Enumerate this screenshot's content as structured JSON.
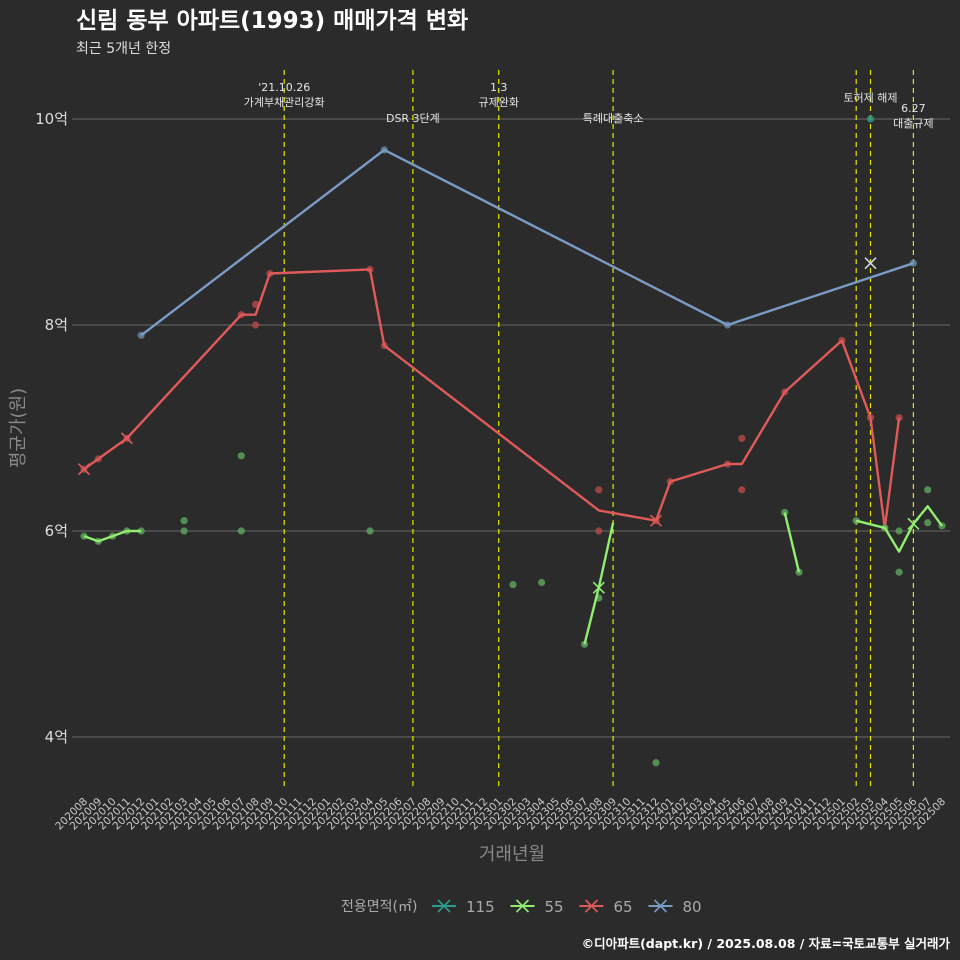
{
  "header": {
    "title": "신림 동부 아파트(1993) 매매가격 변화",
    "subtitle": "최근 5개년 한정"
  },
  "caption": "©디아파트(dapt.kr) / 2025.08.08 / 자료=국토교통부 실거래가",
  "colors": {
    "background": "#2b2b2b",
    "grid": "#6a6a6a",
    "event_line": "#e6e600",
    "s115": "#2a9d8f",
    "s55": "#90ee70",
    "s65": "#e05a5a",
    "s80": "#7a9cc4",
    "point55": "#5fa85f",
    "point65": "#b84a4a",
    "point80": "#6a8aaa"
  },
  "chart_data": {
    "type": "line",
    "xlabel": "거래년월",
    "ylabel": "평균가(원)",
    "ylim": [
      3.5,
      10.5
    ],
    "yticks": [
      {
        "value": 4,
        "label": "4억"
      },
      {
        "value": 6,
        "label": "6억"
      },
      {
        "value": 8,
        "label": "8억"
      },
      {
        "value": 10,
        "label": "10억"
      }
    ],
    "categories": [
      "202008",
      "202009",
      "202010",
      "202011",
      "202012",
      "202101",
      "202102",
      "202103",
      "202104",
      "202105",
      "202106",
      "202107",
      "202108",
      "202109",
      "202110",
      "202111",
      "202112",
      "202201",
      "202202",
      "202203",
      "202204",
      "202205",
      "202206",
      "202207",
      "202208",
      "202209",
      "202210",
      "202211",
      "202212",
      "202301",
      "202302",
      "202303",
      "202304",
      "202305",
      "202306",
      "202307",
      "202308",
      "202309",
      "202310",
      "202311",
      "202312",
      "202401",
      "202402",
      "202403",
      "202404",
      "202405",
      "202406",
      "202407",
      "202408",
      "202409",
      "202410",
      "202411",
      "202412",
      "202501",
      "202502",
      "202503",
      "202504",
      "202505",
      "202506",
      "202507",
      "202508"
    ],
    "legend": {
      "title": "전용면적(㎡)",
      "position": "bottom",
      "items": [
        {
          "name": "115",
          "color": "#2a9d8f"
        },
        {
          "name": "55",
          "color": "#90ee70"
        },
        {
          "name": "65",
          "color": "#e05a5a"
        },
        {
          "name": "80",
          "color": "#7a9cc4"
        }
      ]
    },
    "events": [
      {
        "x": "202110",
        "label": "'21.10.26\n가계부채관리강화",
        "label_y": 10.27
      },
      {
        "x": "202207",
        "label": "DSR 3단계",
        "label_y": 9.97
      },
      {
        "x": "202301",
        "label": "1.3\n규제완화",
        "label_y": 10.27
      },
      {
        "x": "202309",
        "label": "특례대출축소",
        "label_y": 9.97
      },
      {
        "x": "202502",
        "label": "",
        "label_y": 10.0
      },
      {
        "x": "202503",
        "label": "토허제 해제",
        "label_y": 10.17
      },
      {
        "x": "202506",
        "label": "6.27\n대출규제",
        "label_y": 10.07
      }
    ],
    "series": [
      {
        "name": "115",
        "lines": [],
        "points": [
          {
            "x": "202503",
            "y": 10.0
          }
        ],
        "x_marks": []
      },
      {
        "name": "55",
        "lines": [
          [
            {
              "x": "202008",
              "y": 5.95
            },
            {
              "x": "202009",
              "y": 5.9
            },
            {
              "x": "202010",
              "y": 5.95
            },
            {
              "x": "202011",
              "y": 6.0
            },
            {
              "x": "202012",
              "y": 6.0
            }
          ],
          [
            {
              "x": "202307",
              "y": 4.9
            },
            {
              "x": "202308",
              "y": 5.45
            },
            {
              "x": "202309",
              "y": 6.08
            }
          ],
          [
            {
              "x": "202409",
              "y": 6.18
            },
            {
              "x": "202410",
              "y": 5.6
            }
          ],
          [
            {
              "x": "202502",
              "y": 6.1
            },
            {
              "x": "202504",
              "y": 6.03
            },
            {
              "x": "202505",
              "y": 5.8
            },
            {
              "x": "202506",
              "y": 6.07
            },
            {
              "x": "202507",
              "y": 6.24
            },
            {
              "x": "202508",
              "y": 6.05
            }
          ]
        ],
        "points": [
          {
            "x": "202008",
            "y": 5.95
          },
          {
            "x": "202009",
            "y": 5.9
          },
          {
            "x": "202010",
            "y": 5.95
          },
          {
            "x": "202011",
            "y": 6.0
          },
          {
            "x": "202012",
            "y": 6.0
          },
          {
            "x": "202103",
            "y": 6.1
          },
          {
            "x": "202103",
            "y": 6.0
          },
          {
            "x": "202107",
            "y": 6.73
          },
          {
            "x": "202107",
            "y": 6.0
          },
          {
            "x": "202204",
            "y": 6.0
          },
          {
            "x": "202302",
            "y": 5.48
          },
          {
            "x": "202304",
            "y": 5.5
          },
          {
            "x": "202307",
            "y": 4.9
          },
          {
            "x": "202308",
            "y": 5.35
          },
          {
            "x": "202312",
            "y": 3.75
          },
          {
            "x": "202409",
            "y": 6.18
          },
          {
            "x": "202410",
            "y": 5.6
          },
          {
            "x": "202502",
            "y": 6.1
          },
          {
            "x": "202504",
            "y": 6.03
          },
          {
            "x": "202505",
            "y": 6.0
          },
          {
            "x": "202505",
            "y": 5.6
          },
          {
            "x": "202507",
            "y": 6.4
          },
          {
            "x": "202507",
            "y": 6.08
          },
          {
            "x": "202508",
            "y": 6.05
          }
        ],
        "x_marks": [
          {
            "x": "202308",
            "y": 5.45
          },
          {
            "x": "202506",
            "y": 6.07
          }
        ]
      },
      {
        "name": "65",
        "lines": [
          [
            {
              "x": "202008",
              "y": 6.6
            },
            {
              "x": "202009",
              "y": 6.7
            },
            {
              "x": "202011",
              "y": 6.9
            },
            {
              "x": "202107",
              "y": 8.1
            },
            {
              "x": "202108",
              "y": 8.1
            },
            {
              "x": "202109",
              "y": 8.5
            },
            {
              "x": "202204",
              "y": 8.54
            },
            {
              "x": "202205",
              "y": 7.8
            },
            {
              "x": "202308",
              "y": 6.2
            },
            {
              "x": "202312",
              "y": 6.1
            },
            {
              "x": "202401",
              "y": 6.48
            },
            {
              "x": "202405",
              "y": 6.65
            },
            {
              "x": "202406",
              "y": 6.65
            },
            {
              "x": "202409",
              "y": 7.35
            },
            {
              "x": "202501",
              "y": 7.85
            },
            {
              "x": "202503",
              "y": 7.1
            },
            {
              "x": "202504",
              "y": 6.03
            },
            {
              "x": "202505",
              "y": 7.1
            }
          ]
        ],
        "points": [
          {
            "x": "202008",
            "y": 6.6
          },
          {
            "x": "202009",
            "y": 6.7
          },
          {
            "x": "202011",
            "y": 6.9
          },
          {
            "x": "202107",
            "y": 8.1
          },
          {
            "x": "202108",
            "y": 8.2
          },
          {
            "x": "202108",
            "y": 8.0
          },
          {
            "x": "202109",
            "y": 8.5
          },
          {
            "x": "202204",
            "y": 8.54
          },
          {
            "x": "202205",
            "y": 7.8
          },
          {
            "x": "202308",
            "y": 6.4
          },
          {
            "x": "202308",
            "y": 6.0
          },
          {
            "x": "202312",
            "y": 6.1
          },
          {
            "x": "202401",
            "y": 6.48
          },
          {
            "x": "202405",
            "y": 6.65
          },
          {
            "x": "202406",
            "y": 6.9
          },
          {
            "x": "202406",
            "y": 6.4
          },
          {
            "x": "202409",
            "y": 7.35
          },
          {
            "x": "202501",
            "y": 7.85
          },
          {
            "x": "202503",
            "y": 7.1
          },
          {
            "x": "202504",
            "y": 6.03
          },
          {
            "x": "202505",
            "y": 7.1
          }
        ],
        "x_marks": [
          {
            "x": "202008",
            "y": 6.6
          },
          {
            "x": "202011",
            "y": 6.9
          },
          {
            "x": "202312",
            "y": 6.1
          }
        ]
      },
      {
        "name": "80",
        "lines": [
          [
            {
              "x": "202012",
              "y": 7.9
            },
            {
              "x": "202205",
              "y": 9.7
            },
            {
              "x": "202405",
              "y": 8.0
            },
            {
              "x": "202506",
              "y": 8.6
            }
          ]
        ],
        "points": [
          {
            "x": "202012",
            "y": 7.9
          },
          {
            "x": "202205",
            "y": 9.7
          },
          {
            "x": "202405",
            "y": 8.0
          },
          {
            "x": "202506",
            "y": 8.6
          }
        ],
        "x_marks": [
          {
            "x": "202503",
            "y": 8.6
          }
        ]
      }
    ]
  }
}
